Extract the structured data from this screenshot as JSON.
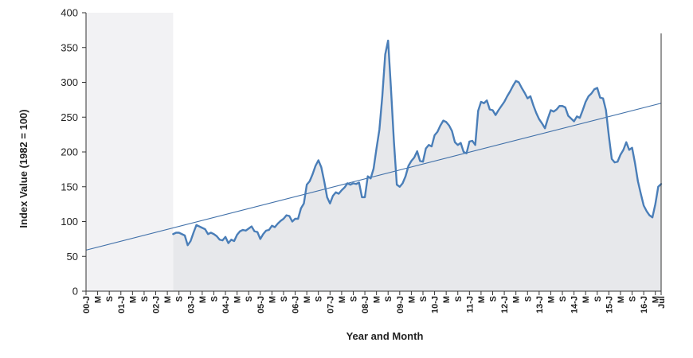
{
  "chart_data": {
    "type": "area",
    "title": "",
    "xlabel": "Year and Month",
    "ylabel": "Index Value (1982 = 100)",
    "ylim": [
      0,
      400
    ],
    "yticks": [
      0,
      50,
      100,
      150,
      200,
      250,
      300,
      350,
      400
    ],
    "grid": false,
    "legend": "none",
    "x_tick_labels": [
      "00-J",
      "M",
      "S",
      "01-J",
      "M",
      "S",
      "02-J",
      "M",
      "S",
      "03-J",
      "M",
      "S",
      "04-J",
      "M",
      "S",
      "05-J",
      "M",
      "S",
      "06-J",
      "M",
      "S",
      "07-J",
      "M",
      "S",
      "08-J",
      "M",
      "S",
      "09-J",
      "M",
      "S",
      "10-J",
      "M",
      "S",
      "11-J",
      "M",
      "S",
      "12-J",
      "M",
      "S",
      "13-J",
      "M",
      "S",
      "14-J",
      "M",
      "S",
      "15-J",
      "M",
      "S",
      "16-J",
      "M",
      "Jul"
    ],
    "x_start": "2000-01",
    "x_end": "2016-07",
    "series": [
      {
        "values_start": "2002-07",
        "values": [
          82,
          84,
          84,
          82,
          80,
          66,
          72,
          84,
          95,
          93,
          91,
          89,
          82,
          84,
          82,
          79,
          74,
          73,
          78,
          69,
          74,
          72,
          81,
          86,
          88,
          87,
          90,
          93,
          86,
          85,
          75,
          82,
          87,
          88,
          94,
          92,
          97,
          101,
          104,
          109,
          108,
          100,
          104,
          104,
          119,
          126,
          153,
          158,
          168,
          180,
          188,
          178,
          158,
          135,
          126,
          137,
          142,
          140,
          145,
          149,
          155,
          153,
          155,
          154,
          156,
          135,
          135,
          165,
          162,
          176,
          205,
          232,
          280,
          340,
          360,
          290,
          215,
          153,
          150,
          155,
          165,
          180,
          187,
          192,
          201,
          187,
          186,
          205,
          210,
          208,
          224,
          229,
          238,
          245,
          243,
          238,
          230,
          214,
          210,
          213,
          200,
          198,
          215,
          216,
          210,
          259,
          272,
          270,
          274,
          261,
          260,
          253,
          260,
          266,
          272,
          280,
          287,
          295,
          302,
          300,
          292,
          285,
          277,
          280,
          267,
          256,
          247,
          241,
          234,
          248,
          260,
          258,
          261,
          266,
          266,
          264,
          252,
          248,
          244,
          251,
          249,
          260,
          272,
          280,
          284,
          290,
          292,
          278,
          277,
          260,
          223,
          190,
          185,
          186,
          196,
          203,
          214,
          203,
          206,
          184,
          158,
          140,
          123,
          115,
          109,
          106,
          125,
          150,
          154
        ]
      },
      {
        "name": "",
        "type": "trend",
        "start": [
          "2000-01",
          59
        ],
        "end": [
          "2016-07",
          270
        ]
      }
    ]
  },
  "colors": {
    "line": "#4a7eb8",
    "area_fill": "#e7e8eb",
    "pre_area_fill": "#f2f2f4",
    "trend": "#3f6fa8",
    "axis": "#333333"
  }
}
